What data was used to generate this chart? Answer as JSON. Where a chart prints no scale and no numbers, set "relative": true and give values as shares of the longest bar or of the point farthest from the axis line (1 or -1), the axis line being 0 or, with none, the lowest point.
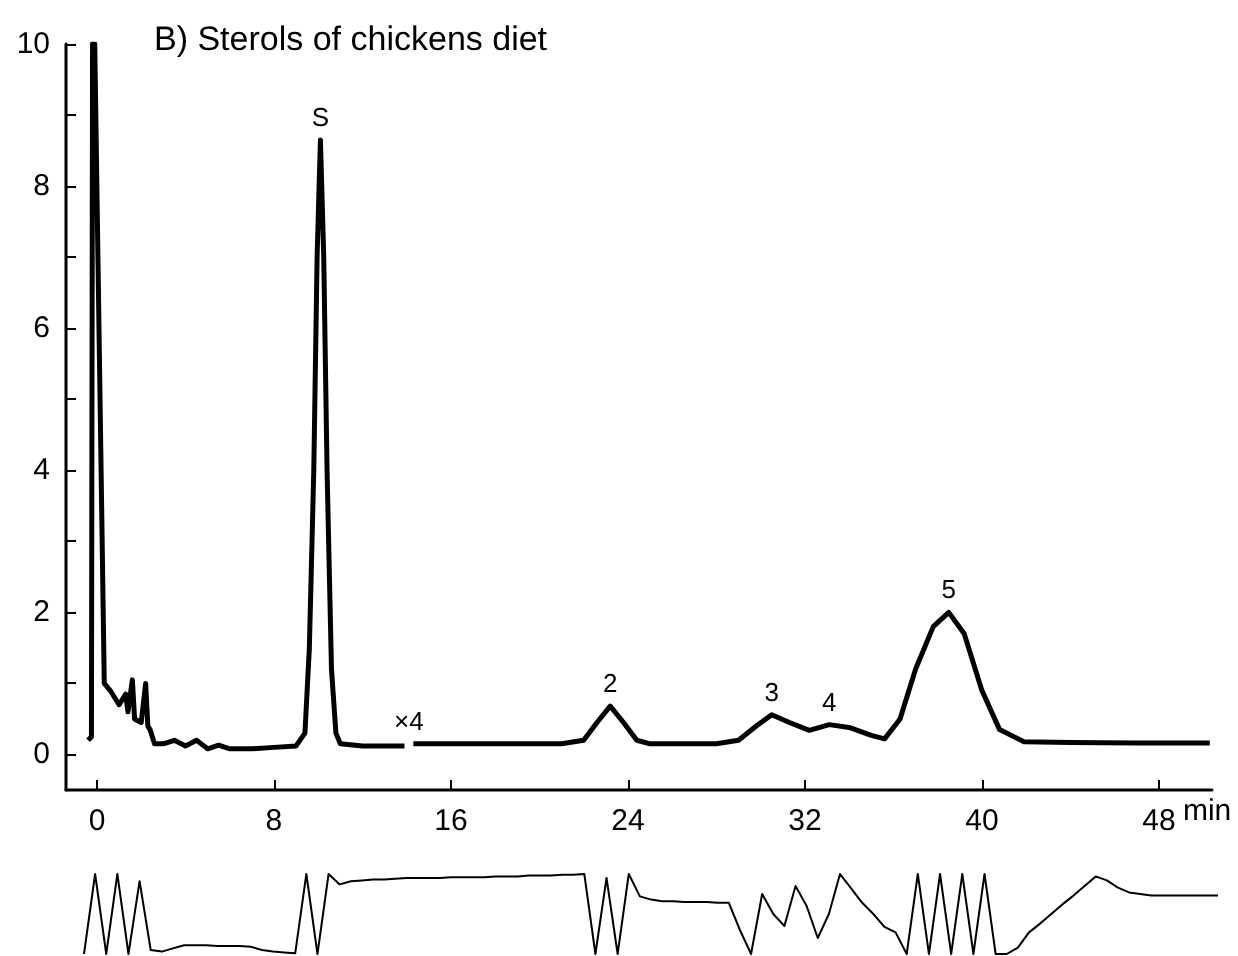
{
  "chart_data": [
    {
      "type": "line",
      "title": "B) Sterols of chickens diet",
      "xlabel": "min",
      "color": "#000000",
      "x": [
        -0.4,
        -0.25,
        -0.2,
        -0.1,
        0.33,
        0.6,
        1.0,
        1.3,
        1.4,
        1.6,
        1.7,
        2.0,
        2.2,
        2.3,
        2.4,
        2.6,
        3.0,
        3.5,
        4.0,
        4.5,
        5.0,
        5.5,
        6.0,
        7.0,
        8.0,
        9.0,
        9.4,
        9.6,
        9.8,
        9.95,
        10.1,
        10.25,
        10.4,
        10.6,
        10.8,
        11.0,
        12.0,
        13.9,
        14.1,
        14.3,
        16,
        18,
        21,
        22,
        22.6,
        23.2,
        23.8,
        24.4,
        25,
        28,
        29,
        29.8,
        30.5,
        31.3,
        32.2,
        33.1,
        34,
        35,
        35.6,
        36.3,
        37,
        37.8,
        38.5,
        39.2,
        40,
        40.8,
        41.9,
        44,
        47,
        50.3
      ],
      "values": [
        0.2,
        0.25,
        10,
        10,
        1.0,
        0.9,
        0.7,
        0.85,
        0.6,
        1.05,
        0.5,
        0.45,
        1.0,
        0.4,
        0.35,
        0.15,
        0.15,
        0.2,
        0.12,
        0.2,
        0.08,
        0.13,
        0.08,
        0.08,
        0.1,
        0.12,
        0.3,
        1.5,
        4,
        7,
        8.65,
        7,
        4,
        1.2,
        0.3,
        0.15,
        0.12,
        0.12,
        null,
        0.15,
        0.15,
        0.15,
        0.15,
        0.2,
        0.45,
        0.68,
        0.45,
        0.2,
        0.15,
        0.15,
        0.2,
        0.4,
        0.56,
        0.45,
        0.34,
        0.42,
        0.38,
        0.27,
        0.22,
        0.5,
        1.2,
        1.8,
        2.0,
        1.7,
        0.9,
        0.35,
        0.18,
        0.17,
        0.16,
        0.16
      ],
      "xlim": [
        -1.4,
        50.4
      ],
      "ylim": [
        -0.5,
        10
      ],
      "xticks": [
        0,
        8,
        16,
        24,
        32,
        40,
        48
      ],
      "yticks": [
        0,
        {
          "value": 1,
          "label": null
        },
        2,
        {
          "value": 3,
          "label": null
        },
        4,
        {
          "value": 5,
          "label": null
        },
        6,
        {
          "value": 7,
          "label": null
        },
        8,
        {
          "value": 9,
          "label": null
        },
        10
      ],
      "annotations": [
        {
          "text": "S",
          "x": 10.1,
          "y": 8.65
        },
        {
          "text": "×4",
          "x": 14.1,
          "y": 0.15
        },
        {
          "text": "2",
          "x": 23.2,
          "y": 0.68
        },
        {
          "text": "3",
          "x": 30.5,
          "y": 0.56
        },
        {
          "text": "4",
          "x": 33.1,
          "y": 0.42
        },
        {
          "text": "5",
          "x": 38.5,
          "y": 2.0
        }
      ]
    },
    {
      "type": "line",
      "relative": true,
      "color": "#000000",
      "tick_labels": false,
      "categories": [
        null,
        null,
        null,
        null,
        null,
        null,
        null,
        null,
        null,
        null,
        null,
        null,
        null,
        null,
        null,
        null,
        null,
        null,
        null,
        null,
        null,
        null,
        null,
        null,
        null,
        null,
        null,
        null,
        null,
        null,
        null,
        null,
        null,
        null,
        null,
        null,
        null,
        null,
        null,
        null,
        null,
        null,
        null,
        null,
        null,
        null,
        null,
        null,
        null,
        null,
        null,
        null,
        null,
        null,
        null,
        null,
        null,
        null,
        null,
        null,
        null,
        null,
        null,
        null,
        null,
        null,
        null,
        null,
        null,
        null,
        null,
        null,
        null,
        null,
        null,
        null,
        null,
        null,
        null,
        null,
        null,
        null,
        null,
        null,
        null,
        null,
        null,
        null,
        null,
        null,
        null,
        null,
        null,
        null,
        null,
        null,
        null,
        null,
        null,
        null,
        null,
        null,
        null
      ],
      "values": [
        0,
        1,
        0,
        1,
        0,
        0.91,
        0.05,
        0.03,
        0.07,
        0.11,
        0.11,
        0.11,
        0.1,
        0.1,
        0.1,
        0.09,
        0.05,
        0.03,
        0.02,
        0.01,
        1,
        0,
        1,
        0.87,
        0.91,
        0.92,
        0.93,
        0.93,
        0.94,
        0.95,
        0.95,
        0.95,
        0.95,
        0.96,
        0.96,
        0.96,
        0.96,
        0.97,
        0.97,
        0.97,
        0.98,
        0.98,
        0.98,
        0.99,
        0.99,
        1,
        0,
        0.95,
        0,
        1,
        0.72,
        0.68,
        0.66,
        0.66,
        0.65,
        0.65,
        0.65,
        0.64,
        0.64,
        0.3,
        0,
        0.75,
        0.5,
        0.35,
        0.85,
        0.6,
        0.2,
        0.5,
        1,
        0.82,
        0.64,
        0.5,
        0.34,
        0.27,
        0,
        1,
        0,
        1,
        0,
        1,
        0,
        1,
        0,
        0,
        0.08,
        0.27,
        0.38,
        0.5,
        0.62,
        0.73,
        0.85,
        0.97,
        0.92,
        0.83,
        0.77,
        0.75,
        0.73,
        0.73,
        0.73,
        0.73,
        0.73,
        0.73,
        0.73
      ]
    }
  ]
}
